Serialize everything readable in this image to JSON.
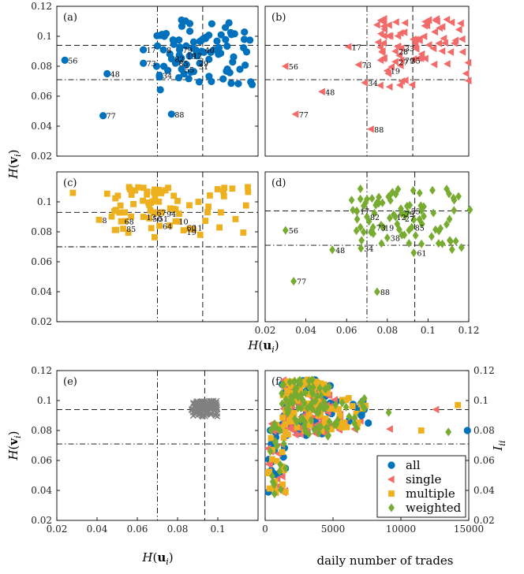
{
  "colors": {
    "all": "#0072BD",
    "single": "#F26B6B",
    "multiple": "#EDB120",
    "weighted": "#77AC30",
    "shuffled": "#808080"
  },
  "axis_labels": {
    "y_top_left": "H(v_i)",
    "y_bottom_left": "H(v_i)",
    "y_right": "I_ii",
    "x_mid": "H(u_i)",
    "x_bottom_left": "H(u_i)",
    "x_bottom_right": "daily number of trades"
  },
  "chart_data": [
    {
      "id": "a",
      "panel_label": "(a)",
      "type": "scatter",
      "marker": "circle",
      "color_key": "all",
      "xlim": [
        0.02,
        0.12
      ],
      "ylim": [
        0.02,
        0.12
      ],
      "xticks": [],
      "yticks": [
        "0.02",
        "0.04",
        "0.06",
        "0.08",
        "0.1",
        "0.12"
      ],
      "hlines": [
        {
          "y": 0.094,
          "style": "dashed"
        },
        {
          "y": 0.071,
          "style": "dashdot"
        }
      ],
      "vlines": [
        {
          "x": 0.07,
          "style": "dashdot"
        },
        {
          "x": 0.0925,
          "style": "dashed"
        }
      ],
      "cluster": {
        "seed": 11,
        "n": 80,
        "x": [
          0.068,
          0.118
        ],
        "y": [
          0.064,
          0.111
        ]
      },
      "points": [
        {
          "x": 0.024,
          "y": 0.084
        },
        {
          "x": 0.043,
          "y": 0.047
        },
        {
          "x": 0.045,
          "y": 0.075
        },
        {
          "x": 0.071,
          "y": 0.074
        },
        {
          "x": 0.077,
          "y": 0.048
        },
        {
          "x": 0.063,
          "y": 0.091
        },
        {
          "x": 0.063,
          "y": 0.082
        },
        {
          "x": 0.073,
          "y": 0.091
        },
        {
          "x": 0.077,
          "y": 0.085
        },
        {
          "x": 0.079,
          "y": 0.082
        },
        {
          "x": 0.082,
          "y": 0.078
        },
        {
          "x": 0.081,
          "y": 0.091
        },
        {
          "x": 0.086,
          "y": 0.087
        },
        {
          "x": 0.089,
          "y": 0.091
        },
        {
          "x": 0.091,
          "y": 0.082
        },
        {
          "x": 0.092,
          "y": 0.09
        }
      ],
      "point_labels": [
        {
          "text": "56",
          "x": 0.024,
          "y": 0.084
        },
        {
          "text": "77",
          "x": 0.043,
          "y": 0.047
        },
        {
          "text": "48",
          "x": 0.045,
          "y": 0.075
        },
        {
          "text": "34",
          "x": 0.071,
          "y": 0.074
        },
        {
          "text": "88",
          "x": 0.077,
          "y": 0.048
        },
        {
          "text": "17",
          "x": 0.063,
          "y": 0.091
        },
        {
          "text": "73",
          "x": 0.063,
          "y": 0.082
        },
        {
          "text": "8",
          "x": 0.073,
          "y": 0.091
        },
        {
          "text": "82",
          "x": 0.077,
          "y": 0.085
        },
        {
          "text": "85",
          "x": 0.079,
          "y": 0.082
        },
        {
          "text": "55",
          "x": 0.082,
          "y": 0.078
        },
        {
          "text": "79",
          "x": 0.081,
          "y": 0.091
        },
        {
          "text": "19",
          "x": 0.083,
          "y": 0.087
        },
        {
          "text": "12",
          "x": 0.086,
          "y": 0.087
        },
        {
          "text": "29",
          "x": 0.089,
          "y": 0.082
        },
        {
          "text": "31",
          "x": 0.089,
          "y": 0.08
        },
        {
          "text": "40",
          "x": 0.092,
          "y": 0.091
        }
      ]
    },
    {
      "id": "b",
      "panel_label": "(b)",
      "type": "scatter",
      "marker": "triangle-left",
      "color_key": "single",
      "xlim": [
        0.02,
        0.12
      ],
      "ylim": [
        0.02,
        0.12
      ],
      "xticks": [],
      "yticks": [],
      "hlines": [
        {
          "y": 0.094,
          "style": "dashed"
        },
        {
          "y": 0.071,
          "style": "dashdot"
        }
      ],
      "vlines": [
        {
          "x": 0.07,
          "style": "dashdot"
        },
        {
          "x": 0.0925,
          "style": "dashed"
        }
      ],
      "cluster": {
        "seed": 23,
        "n": 80,
        "x": [
          0.075,
          0.12
        ],
        "y": [
          0.062,
          0.113
        ]
      },
      "points": [
        {
          "x": 0.03,
          "y": 0.08
        },
        {
          "x": 0.035,
          "y": 0.048
        },
        {
          "x": 0.048,
          "y": 0.063
        },
        {
          "x": 0.061,
          "y": 0.093
        },
        {
          "x": 0.066,
          "y": 0.081
        },
        {
          "x": 0.069,
          "y": 0.069
        },
        {
          "x": 0.072,
          "y": 0.038
        },
        {
          "x": 0.08,
          "y": 0.077
        },
        {
          "x": 0.084,
          "y": 0.09
        },
        {
          "x": 0.084,
          "y": 0.083
        },
        {
          "x": 0.087,
          "y": 0.084
        },
        {
          "x": 0.087,
          "y": 0.092
        }
      ],
      "point_labels": [
        {
          "text": "56",
          "x": 0.03,
          "y": 0.08
        },
        {
          "text": "77",
          "x": 0.035,
          "y": 0.048
        },
        {
          "text": "48",
          "x": 0.048,
          "y": 0.063
        },
        {
          "text": "17",
          "x": 0.061,
          "y": 0.093
        },
        {
          "text": "73",
          "x": 0.066,
          "y": 0.081
        },
        {
          "text": "34",
          "x": 0.069,
          "y": 0.069
        },
        {
          "text": "88",
          "x": 0.072,
          "y": 0.038
        },
        {
          "text": "19",
          "x": 0.08,
          "y": 0.077
        },
        {
          "text": "28",
          "x": 0.084,
          "y": 0.09
        },
        {
          "text": "27",
          "x": 0.084,
          "y": 0.083
        },
        {
          "text": "79",
          "x": 0.087,
          "y": 0.084
        },
        {
          "text": "35",
          "x": 0.09,
          "y": 0.084
        },
        {
          "text": "33",
          "x": 0.087,
          "y": 0.092
        }
      ]
    },
    {
      "id": "c",
      "panel_label": "(c)",
      "type": "scatter",
      "marker": "square",
      "color_key": "multiple",
      "xlim": [
        0.02,
        0.12
      ],
      "ylim": [
        0.02,
        0.12
      ],
      "xticks": [],
      "yticks": [
        "0.02",
        "0.04",
        "0.06",
        "0.08",
        "0.1"
      ],
      "hlines": [
        {
          "y": 0.093,
          "style": "dashed"
        },
        {
          "y": 0.07,
          "style": "dashdot"
        }
      ],
      "vlines": [
        {
          "x": 0.07,
          "style": "dashdot"
        },
        {
          "x": 0.0925,
          "style": "dashed"
        }
      ],
      "cluster": {
        "seed": 37,
        "n": 70,
        "x": [
          0.044,
          0.119
        ],
        "y": [
          0.076,
          0.11
        ]
      },
      "points": [
        {
          "x": 0.028,
          "y": 0.106
        },
        {
          "x": 0.041,
          "y": 0.088
        },
        {
          "x": 0.052,
          "y": 0.087
        },
        {
          "x": 0.053,
          "y": 0.082
        },
        {
          "x": 0.063,
          "y": 0.09
        },
        {
          "x": 0.066,
          "y": 0.089
        },
        {
          "x": 0.068,
          "y": 0.093
        },
        {
          "x": 0.071,
          "y": 0.084
        },
        {
          "x": 0.072,
          "y": 0.093
        },
        {
          "x": 0.079,
          "y": 0.087
        },
        {
          "x": 0.083,
          "y": 0.081
        },
        {
          "x": 0.086,
          "y": 0.082
        }
      ],
      "point_labels": [
        {
          "text": "8",
          "x": 0.041,
          "y": 0.088
        },
        {
          "text": "68",
          "x": 0.052,
          "y": 0.087
        },
        {
          "text": "85",
          "x": 0.053,
          "y": 0.082
        },
        {
          "text": "13",
          "x": 0.063,
          "y": 0.09
        },
        {
          "text": "50",
          "x": 0.066,
          "y": 0.089
        },
        {
          "text": "51",
          "x": 0.069,
          "y": 0.089
        },
        {
          "text": "67",
          "x": 0.068,
          "y": 0.093
        },
        {
          "text": "64",
          "x": 0.071,
          "y": 0.084
        },
        {
          "text": "94",
          "x": 0.073,
          "y": 0.092
        },
        {
          "text": "10",
          "x": 0.079,
          "y": 0.087
        },
        {
          "text": "60",
          "x": 0.083,
          "y": 0.083
        },
        {
          "text": "11",
          "x": 0.086,
          "y": 0.083
        },
        {
          "text": "19",
          "x": 0.083,
          "y": 0.08
        }
      ]
    },
    {
      "id": "d",
      "panel_label": "(d)",
      "type": "scatter",
      "marker": "diamond",
      "color_key": "weighted",
      "xlim": [
        0.02,
        0.12
      ],
      "ylim": [
        0.02,
        0.12
      ],
      "xticks": [
        "0.02",
        "0.04",
        "0.06",
        "0.08",
        "0.1",
        "0.12"
      ],
      "yticks": [],
      "hlines": [
        {
          "y": 0.094,
          "style": "dashed"
        },
        {
          "y": 0.071,
          "style": "dashdot"
        }
      ],
      "vlines": [
        {
          "x": 0.07,
          "style": "dashdot"
        },
        {
          "x": 0.0935,
          "style": "dashed"
        }
      ],
      "cluster": {
        "seed": 53,
        "n": 80,
        "x": [
          0.062,
          0.121
        ],
        "y": [
          0.064,
          0.11
        ]
      },
      "points": [
        {
          "x": 0.03,
          "y": 0.081
        },
        {
          "x": 0.034,
          "y": 0.047
        },
        {
          "x": 0.053,
          "y": 0.068
        },
        {
          "x": 0.067,
          "y": 0.069
        },
        {
          "x": 0.065,
          "y": 0.094
        },
        {
          "x": 0.07,
          "y": 0.09
        },
        {
          "x": 0.073,
          "y": 0.083
        },
        {
          "x": 0.075,
          "y": 0.04
        },
        {
          "x": 0.078,
          "y": 0.083
        },
        {
          "x": 0.08,
          "y": 0.076
        },
        {
          "x": 0.084,
          "y": 0.09
        },
        {
          "x": 0.087,
          "y": 0.092
        },
        {
          "x": 0.09,
          "y": 0.093
        },
        {
          "x": 0.092,
          "y": 0.083
        },
        {
          "x": 0.093,
          "y": 0.066
        }
      ],
      "point_labels": [
        {
          "text": "56",
          "x": 0.03,
          "y": 0.081
        },
        {
          "text": "77",
          "x": 0.034,
          "y": 0.047
        },
        {
          "text": "48",
          "x": 0.053,
          "y": 0.068
        },
        {
          "text": "34",
          "x": 0.067,
          "y": 0.069
        },
        {
          "text": "17",
          "x": 0.065,
          "y": 0.094
        },
        {
          "text": "82",
          "x": 0.07,
          "y": 0.09
        },
        {
          "text": "73",
          "x": 0.073,
          "y": 0.083
        },
        {
          "text": "88",
          "x": 0.075,
          "y": 0.04
        },
        {
          "text": "19",
          "x": 0.077,
          "y": 0.083
        },
        {
          "text": "38",
          "x": 0.08,
          "y": 0.076
        },
        {
          "text": "12",
          "x": 0.083,
          "y": 0.09
        },
        {
          "text": "27",
          "x": 0.087,
          "y": 0.089
        },
        {
          "text": "79",
          "x": 0.087,
          "y": 0.092
        },
        {
          "text": "55",
          "x": 0.09,
          "y": 0.094
        },
        {
          "text": "85",
          "x": 0.092,
          "y": 0.083
        },
        {
          "text": "61",
          "x": 0.093,
          "y": 0.066
        }
      ]
    },
    {
      "id": "e",
      "panel_label": "(e)",
      "type": "scatter",
      "marker": "cross",
      "color_key": "shuffled",
      "xlim": [
        0.02,
        0.12
      ],
      "ylim": [
        0.02,
        0.12
      ],
      "xticks": [
        "0.02",
        "0.04",
        "0.06",
        "0.08",
        "0.1"
      ],
      "yticks": [
        "0.02",
        "0.04",
        "0.06",
        "0.08",
        "0.1",
        "0.12"
      ],
      "hlines": [
        {
          "y": 0.094,
          "style": "dashed"
        },
        {
          "y": 0.071,
          "style": "dashdot"
        }
      ],
      "vlines": [
        {
          "x": 0.07,
          "style": "dashdot"
        },
        {
          "x": 0.0935,
          "style": "dashed"
        }
      ],
      "cluster": {
        "seed": 71,
        "n": 140,
        "x": [
          0.087,
          0.1
        ],
        "y": [
          0.089,
          0.1
        ]
      },
      "points": [],
      "point_labels": []
    },
    {
      "id": "f",
      "panel_label": "(f)",
      "type": "scatter",
      "xlim": [
        0,
        15000
      ],
      "ylim": [
        0.02,
        0.12
      ],
      "xticks": [
        "0",
        "5000",
        "10000",
        "15000"
      ],
      "yticks_right": [
        "0.02",
        "0.04",
        "0.06",
        "0.08",
        "0.1",
        "0.12"
      ],
      "hlines": [
        {
          "y": 0.094,
          "style": "dashed"
        },
        {
          "y": 0.071,
          "style": "dashdot"
        }
      ],
      "legend": {
        "position": "bottom-right",
        "entries": [
          "all",
          "single",
          "multiple",
          "weighted"
        ]
      },
      "series": [
        {
          "name": "all",
          "marker": "circle",
          "color_key": "all",
          "seed": 101,
          "n": 110
        },
        {
          "name": "single",
          "marker": "triangle-left",
          "color_key": "single",
          "seed": 202,
          "n": 110
        },
        {
          "name": "multiple",
          "marker": "square",
          "color_key": "multiple",
          "seed": 303,
          "n": 110
        },
        {
          "name": "weighted",
          "marker": "diamond",
          "color_key": "weighted",
          "seed": 404,
          "n": 110
        }
      ],
      "tail_points": [
        {
          "x": 7600,
          "y": 0.085
        },
        {
          "x": 9200,
          "y": 0.081
        },
        {
          "x": 11500,
          "y": 0.08
        },
        {
          "x": 13500,
          "y": 0.079
        },
        {
          "x": 14900,
          "y": 0.08
        },
        {
          "x": 12600,
          "y": 0.094
        },
        {
          "x": 14200,
          "y": 0.097
        },
        {
          "x": 9100,
          "y": 0.092
        },
        {
          "x": 7100,
          "y": 0.09
        }
      ]
    }
  ]
}
